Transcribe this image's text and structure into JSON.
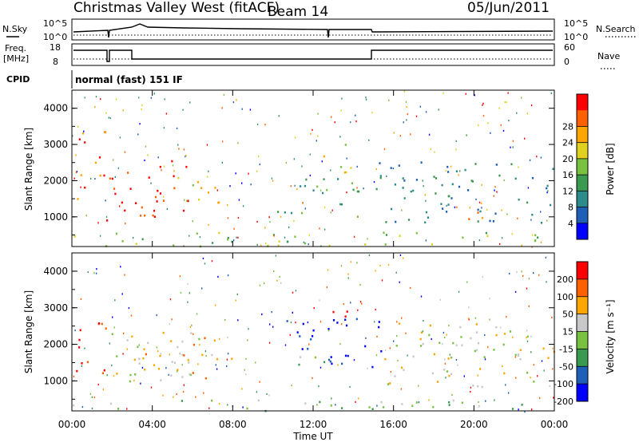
{
  "header": {
    "station": "Christmas Valley West (fitACF)",
    "beam": "Beam 14",
    "date": "05/Jun/2011"
  },
  "noise_panel": {
    "left_label": "N.Sky",
    "left_ticks": [
      "10^5",
      "10^0"
    ],
    "right_label": "N.Search",
    "right_ticks": [
      "10^5",
      "10^0"
    ]
  },
  "freq_panel": {
    "left_label_1": "Freq.",
    "left_label_2": "[MHz]",
    "left_ticks": [
      "18",
      "8"
    ],
    "right_label": "Nave",
    "right_ticks": [
      "60",
      "0"
    ]
  },
  "cpid": {
    "label": "CPID",
    "value": "normal (fast) 151 IF"
  },
  "chart_data": [
    {
      "type": "heatmap",
      "panel": "power",
      "xlabel": "Time UT",
      "ylabel": "Slant Range [km]",
      "x_ticks": [
        "00:00",
        "04:00",
        "08:00",
        "12:00",
        "16:00",
        "20:00",
        "00:00"
      ],
      "y_ticks": [
        "1000",
        "2000",
        "3000",
        "4000"
      ],
      "xlim": [
        0,
        24
      ],
      "ylim": [
        180,
        4500
      ],
      "colorbar": {
        "label": "Power [dB]",
        "ticks": [
          "4",
          "8",
          "12",
          "16",
          "20",
          "24",
          "28"
        ],
        "colors": [
          "#0000ff",
          "#1f5fb8",
          "#2e8b8b",
          "#3a9a50",
          "#7ac142",
          "#e0d020",
          "#ffa500",
          "#ff6000",
          "#ff0000"
        ]
      },
      "features": [
        {
          "t0": 0.2,
          "t1": 1.7,
          "r0": 1500,
          "r1": 3500,
          "level": 7
        },
        {
          "t0": 1.5,
          "t1": 6.0,
          "r0": 900,
          "r1": 2600,
          "level": 8
        },
        {
          "t0": 5.2,
          "t1": 7.5,
          "r0": 1200,
          "r1": 2200,
          "level": 5
        },
        {
          "t0": 10.2,
          "t1": 14.5,
          "r0": 1000,
          "r1": 2200,
          "level": 3
        },
        {
          "t0": 12.5,
          "t1": 14.0,
          "r0": 2200,
          "r1": 3200,
          "level": 5
        },
        {
          "t0": 15.0,
          "t1": 24.0,
          "r0": 800,
          "r1": 2600,
          "level": 2
        },
        {
          "t0": 19.0,
          "t1": 21.0,
          "r0": 800,
          "r1": 1200,
          "level": 6
        },
        {
          "t0": 0.0,
          "t1": 24.0,
          "r0": 200,
          "r1": 600,
          "level": 4
        }
      ]
    },
    {
      "type": "heatmap",
      "panel": "velocity",
      "xlabel": "Time UT",
      "ylabel": "Slant Range [km]",
      "x_ticks": [
        "00:00",
        "04:00",
        "08:00",
        "12:00",
        "16:00",
        "20:00",
        "00:00"
      ],
      "y_ticks": [
        "1000",
        "2000",
        "3000",
        "4000"
      ],
      "xlim": [
        0,
        24
      ],
      "ylim": [
        180,
        4500
      ],
      "colorbar": {
        "label": "Velocity [m s⁻¹]",
        "ticks": [
          "200",
          "100",
          "50",
          "15",
          "-15",
          "-50",
          "-100",
          "-200"
        ],
        "colors": [
          "#0000ff",
          "#1f5fb8",
          "#3a9a50",
          "#7ac142",
          "#c8c8c8",
          "#ffa500",
          "#ff6000",
          "#ff0000"
        ]
      },
      "features": [
        {
          "t0": 0.2,
          "t1": 1.7,
          "r0": 1200,
          "r1": 3300,
          "level": 7
        },
        {
          "t0": 1.5,
          "t1": 6.5,
          "r0": 1000,
          "r1": 2400,
          "level": 4
        },
        {
          "t0": 3.5,
          "t1": 8.0,
          "r0": 1000,
          "r1": 2200,
          "level": 5
        },
        {
          "t0": 10.5,
          "t1": 15.5,
          "r0": 1400,
          "r1": 2800,
          "level": 0
        },
        {
          "t0": 12.5,
          "t1": 14.0,
          "r0": 2600,
          "r1": 3200,
          "level": 7
        },
        {
          "t0": 11.0,
          "t1": 13.5,
          "r0": 1400,
          "r1": 1800,
          "level": 3
        },
        {
          "t0": 15.5,
          "t1": 24.0,
          "r0": 800,
          "r1": 2600,
          "level": 4
        },
        {
          "t0": 0.0,
          "t1": 24.0,
          "r0": 200,
          "r1": 500,
          "level": 3
        }
      ]
    }
  ]
}
